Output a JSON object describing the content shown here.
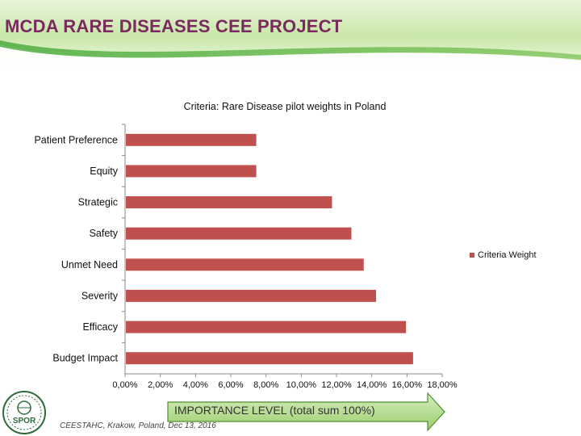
{
  "slide": {
    "title": "MCDA RARE DISEASES CEE PROJECT",
    "arrow_text": "IMPORTANCE LEVEL (total sum 100%)",
    "footer": "CEESTAHC, Krakow, Poland, Dec 13, 2016",
    "logo_text": "SPOR",
    "colors": {
      "title": "#7a2a5e",
      "header_green": "#3aa32e",
      "header_light": "#c9e7a8",
      "arrow_fill": "#9ccf6d",
      "arrow_stroke": "#4f8f2f"
    }
  },
  "chart_data": {
    "type": "bar",
    "orientation": "horizontal",
    "title": "Criteria: Rare Disease pilot weights in Poland",
    "categories": [
      "Patient Preference",
      "Equity",
      "Strategic",
      "Safety",
      "Unmet Need",
      "Severity",
      "Efficacy",
      "Budget Impact"
    ],
    "series": [
      {
        "name": "Criteria Weight",
        "color": "#c0504d",
        "values": [
          7.4,
          7.4,
          11.7,
          12.8,
          13.5,
          14.2,
          15.9,
          16.3
        ]
      }
    ],
    "xlim": [
      0,
      18
    ],
    "xticks": [
      0,
      2,
      4,
      6,
      8,
      10,
      12,
      14,
      16,
      18
    ],
    "xtick_labels": [
      "0,00%",
      "2,00%",
      "4,00%",
      "6,00%",
      "8,00%",
      "10,00%",
      "12,00%",
      "14,00%",
      "16,00%",
      "18,00%"
    ],
    "legend_position": "right",
    "grid": false
  }
}
